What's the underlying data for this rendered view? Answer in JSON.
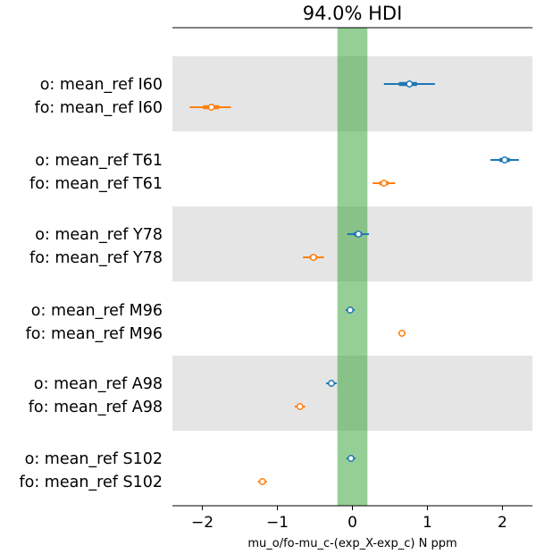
{
  "chart_data": {
    "type": "forest",
    "title": "94.0% HDI",
    "xlabel": "mu_o/fo-mu_c-(exp_X-exp_c) N ppm",
    "ylabel": "",
    "xlim": [
      -2.4,
      2.4
    ],
    "xticks": [
      -2,
      -1,
      0,
      1,
      2
    ],
    "xtick_labels": [
      "−2",
      "−1",
      "0",
      "1",
      "2"
    ],
    "rope": [
      -0.2,
      0.2
    ],
    "rope_color": "#2ca02c",
    "band_color": "#e5e5e5",
    "series_colors": {
      "o": "#1f77b4",
      "fo": "#ff7f0e"
    },
    "groups": [
      {
        "shaded": true,
        "rows": [
          {
            "label": "o: mean_ref I60",
            "series": "o",
            "mean": 0.76,
            "hdi": [
              0.42,
              1.1
            ],
            "iqr": [
              0.62,
              0.86
            ]
          },
          {
            "label": "fo: mean_ref I60",
            "series": "fo",
            "mean": -1.88,
            "hdi": [
              -2.17,
              -1.62
            ],
            "iqr": [
              -1.99,
              -1.78
            ]
          }
        ]
      },
      {
        "shaded": false,
        "rows": [
          {
            "label": "o: mean_ref T61",
            "series": "o",
            "mean": 2.03,
            "hdi": [
              1.84,
              2.22
            ],
            "iqr": [
              1.96,
              2.1
            ]
          },
          {
            "label": "fo: mean_ref T61",
            "series": "fo",
            "mean": 0.42,
            "hdi": [
              0.27,
              0.57
            ],
            "iqr": [
              0.36,
              0.48
            ]
          }
        ]
      },
      {
        "shaded": true,
        "rows": [
          {
            "label": "o: mean_ref Y78",
            "series": "o",
            "mean": 0.08,
            "hdi": [
              -0.07,
              0.22
            ],
            "iqr": [
              0.02,
              0.13
            ]
          },
          {
            "label": "fo: mean_ref Y78",
            "series": "fo",
            "mean": -0.52,
            "hdi": [
              -0.66,
              -0.38
            ],
            "iqr": [
              -0.57,
              -0.47
            ]
          }
        ]
      },
      {
        "shaded": false,
        "rows": [
          {
            "label": "o: mean_ref M96",
            "series": "o",
            "mean": -0.03,
            "hdi": [
              -0.09,
              0.03
            ],
            "iqr": [
              -0.06,
              0.0
            ]
          },
          {
            "label": "fo: mean_ref M96",
            "series": "fo",
            "mean": 0.66,
            "hdi": [
              0.61,
              0.71
            ],
            "iqr": [
              0.64,
              0.68
            ]
          }
        ]
      },
      {
        "shaded": true,
        "rows": [
          {
            "label": "o: mean_ref A98",
            "series": "o",
            "mean": -0.28,
            "hdi": [
              -0.35,
              -0.21
            ],
            "iqr": [
              -0.31,
              -0.25
            ]
          },
          {
            "label": "fo: mean_ref A98",
            "series": "fo",
            "mean": -0.7,
            "hdi": [
              -0.77,
              -0.63
            ],
            "iqr": [
              -0.73,
              -0.67
            ]
          }
        ]
      },
      {
        "shaded": false,
        "rows": [
          {
            "label": "o: mean_ref S102",
            "series": "o",
            "mean": -0.02,
            "hdi": [
              -0.08,
              0.04
            ],
            "iqr": [
              -0.05,
              0.01
            ]
          },
          {
            "label": "fo: mean_ref S102",
            "series": "fo",
            "mean": -1.2,
            "hdi": [
              -1.26,
              -1.14
            ],
            "iqr": [
              -1.23,
              -1.17
            ]
          }
        ]
      }
    ]
  }
}
